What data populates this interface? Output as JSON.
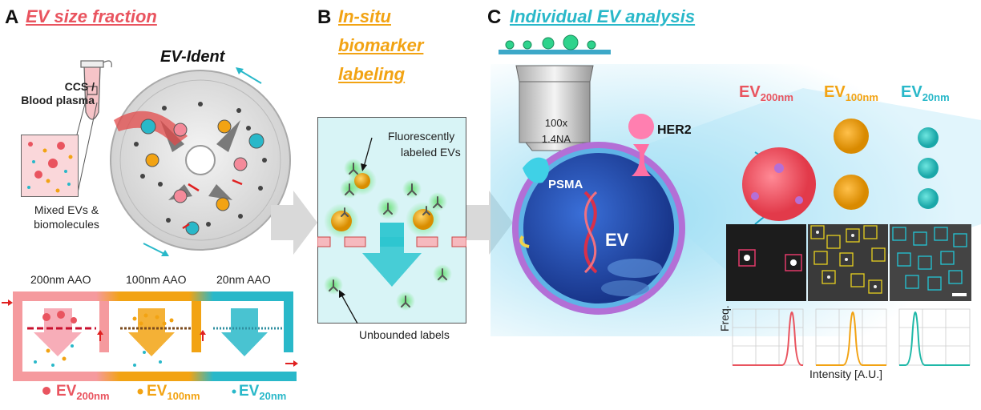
{
  "panelA": {
    "letter": "A",
    "title": "EV size fraction",
    "device_name": "EV-Ident",
    "sample_line1": "CCS /",
    "sample_line2": "Blood plasma",
    "mixed_line1": "Mixed EVs &",
    "mixed_line2": "biomolecules",
    "aao": [
      "200nm AAO",
      "100nm AAO",
      "20nm AAO"
    ],
    "legend": [
      {
        "main": "EV",
        "sub": "200nm",
        "color": "#e9545f"
      },
      {
        "main": "EV",
        "sub": "100nm",
        "color": "#f2a313"
      },
      {
        "main": "EV",
        "sub": "20nm",
        "color": "#29b8c9"
      }
    ]
  },
  "panelB": {
    "letter": "B",
    "title_lines": [
      "In-situ",
      "biomarker",
      "labeling"
    ],
    "fluor_line1": "Fluorescently",
    "fluor_line2": "labeled EVs",
    "unbound": "Unbounded labels"
  },
  "panelC": {
    "letter": "C",
    "title": "Individual EV analysis",
    "objective_mag": "100x",
    "objective_na": "1.4NA",
    "her2": "HER2",
    "psma": "PSMA",
    "ev_label": "EV",
    "sizes": [
      {
        "main": "EV",
        "sub": "200nm",
        "color": "#e9545f"
      },
      {
        "main": "EV",
        "sub": "100nm",
        "color": "#f2a313"
      },
      {
        "main": "EV",
        "sub": "20nm",
        "color": "#29b8c9"
      }
    ],
    "freq_label": "Freq.",
    "intensity_label": "Intensity [A.U.]"
  },
  "colors": {
    "red": "#e9545f",
    "orange": "#f2a313",
    "cyan": "#29b8c9"
  }
}
